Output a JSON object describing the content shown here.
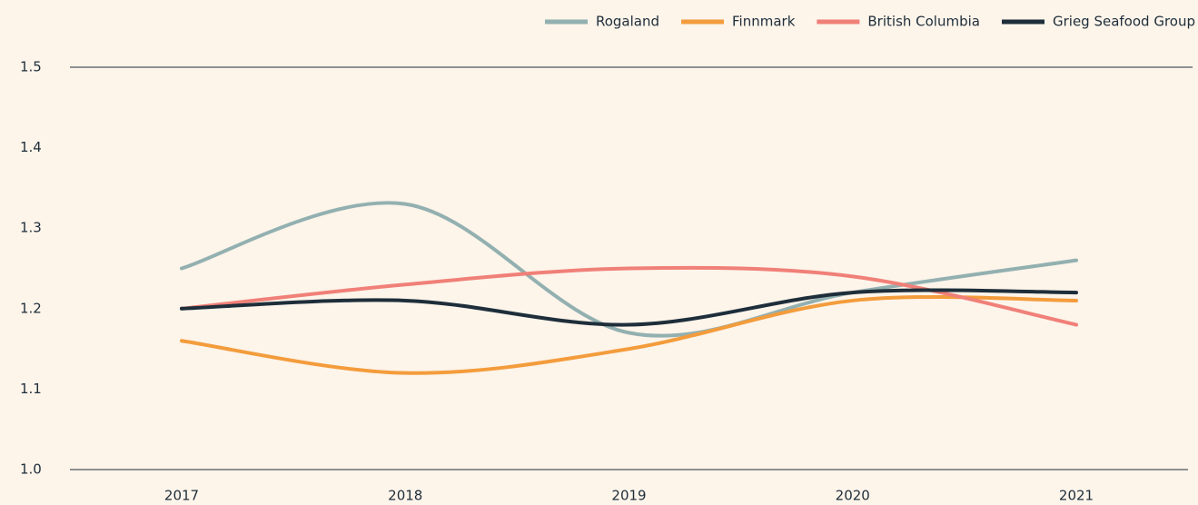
{
  "chart_data": {
    "type": "line",
    "categories": [
      "2017",
      "2018",
      "2019",
      "2020",
      "2021"
    ],
    "series": [
      {
        "name": "Rogaland",
        "color": "#93b0b0",
        "values": [
          1.25,
          1.33,
          1.17,
          1.22,
          1.26
        ]
      },
      {
        "name": "Finnmark",
        "color": "#f39c3c",
        "values": [
          1.16,
          1.12,
          1.15,
          1.21,
          1.21
        ]
      },
      {
        "name": "British Columbia",
        "color": "#f08078",
        "values": [
          1.2,
          1.23,
          1.25,
          1.24,
          1.18
        ]
      },
      {
        "name": "Grieg Seafood Group",
        "color": "#1e2e3a",
        "values": [
          1.2,
          1.21,
          1.18,
          1.22,
          1.22
        ]
      }
    ],
    "ylim": [
      1.0,
      1.5
    ],
    "yticks": [
      {
        "value": 1.0,
        "label": "1.0"
      },
      1.1,
      1.2,
      1.3,
      1.4,
      1.5
    ],
    "legend": "top-right"
  }
}
